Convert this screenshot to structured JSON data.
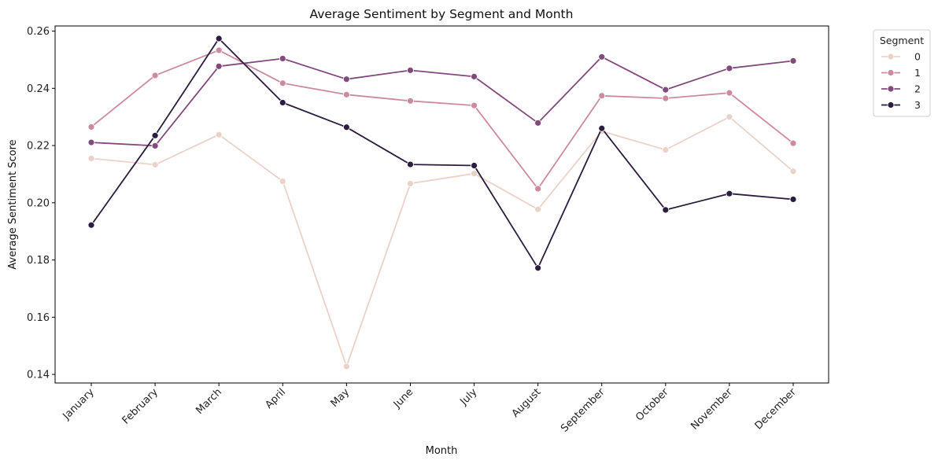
{
  "chart_data": {
    "type": "line",
    "title": "Average Sentiment by Segment and Month",
    "xlabel": "Month",
    "ylabel": "Average Sentiment Score",
    "categories": [
      "January",
      "February",
      "March",
      "April",
      "May",
      "June",
      "July",
      "August",
      "September",
      "October",
      "November",
      "December"
    ],
    "ylim": [
      0.137,
      0.2618
    ],
    "yticks": [
      0.14,
      0.16,
      0.18,
      0.2,
      0.22,
      0.24,
      0.26
    ],
    "ytick_labels": [
      "0.14",
      "0.16",
      "0.18",
      "0.20",
      "0.22",
      "0.24",
      "0.26"
    ],
    "grid": false,
    "legend": {
      "title": "Segment",
      "placement": "outside-top-right"
    },
    "marker": "circle",
    "series": [
      {
        "name": "0",
        "color": "#ebd2c9",
        "values": [
          0.2155,
          0.2133,
          0.2238,
          0.2075,
          0.1428,
          0.2067,
          0.2102,
          0.1977,
          0.225,
          0.2185,
          0.23,
          0.211
        ]
      },
      {
        "name": "1",
        "color": "#cc8aa0",
        "values": [
          0.2265,
          0.2445,
          0.2533,
          0.2418,
          0.2378,
          0.2356,
          0.234,
          0.2049,
          0.2374,
          0.2365,
          0.2384,
          0.2208
        ]
      },
      {
        "name": "2",
        "color": "#824a7c",
        "values": [
          0.2211,
          0.2199,
          0.2477,
          0.2504,
          0.2432,
          0.2463,
          0.2441,
          0.2279,
          0.251,
          0.2395,
          0.247,
          0.2496
        ]
      },
      {
        "name": "3",
        "color": "#2b1d3f",
        "values": [
          0.1922,
          0.2235,
          0.2574,
          0.235,
          0.2264,
          0.2134,
          0.213,
          0.1772,
          0.226,
          0.1975,
          0.2032,
          0.2012
        ]
      }
    ]
  }
}
